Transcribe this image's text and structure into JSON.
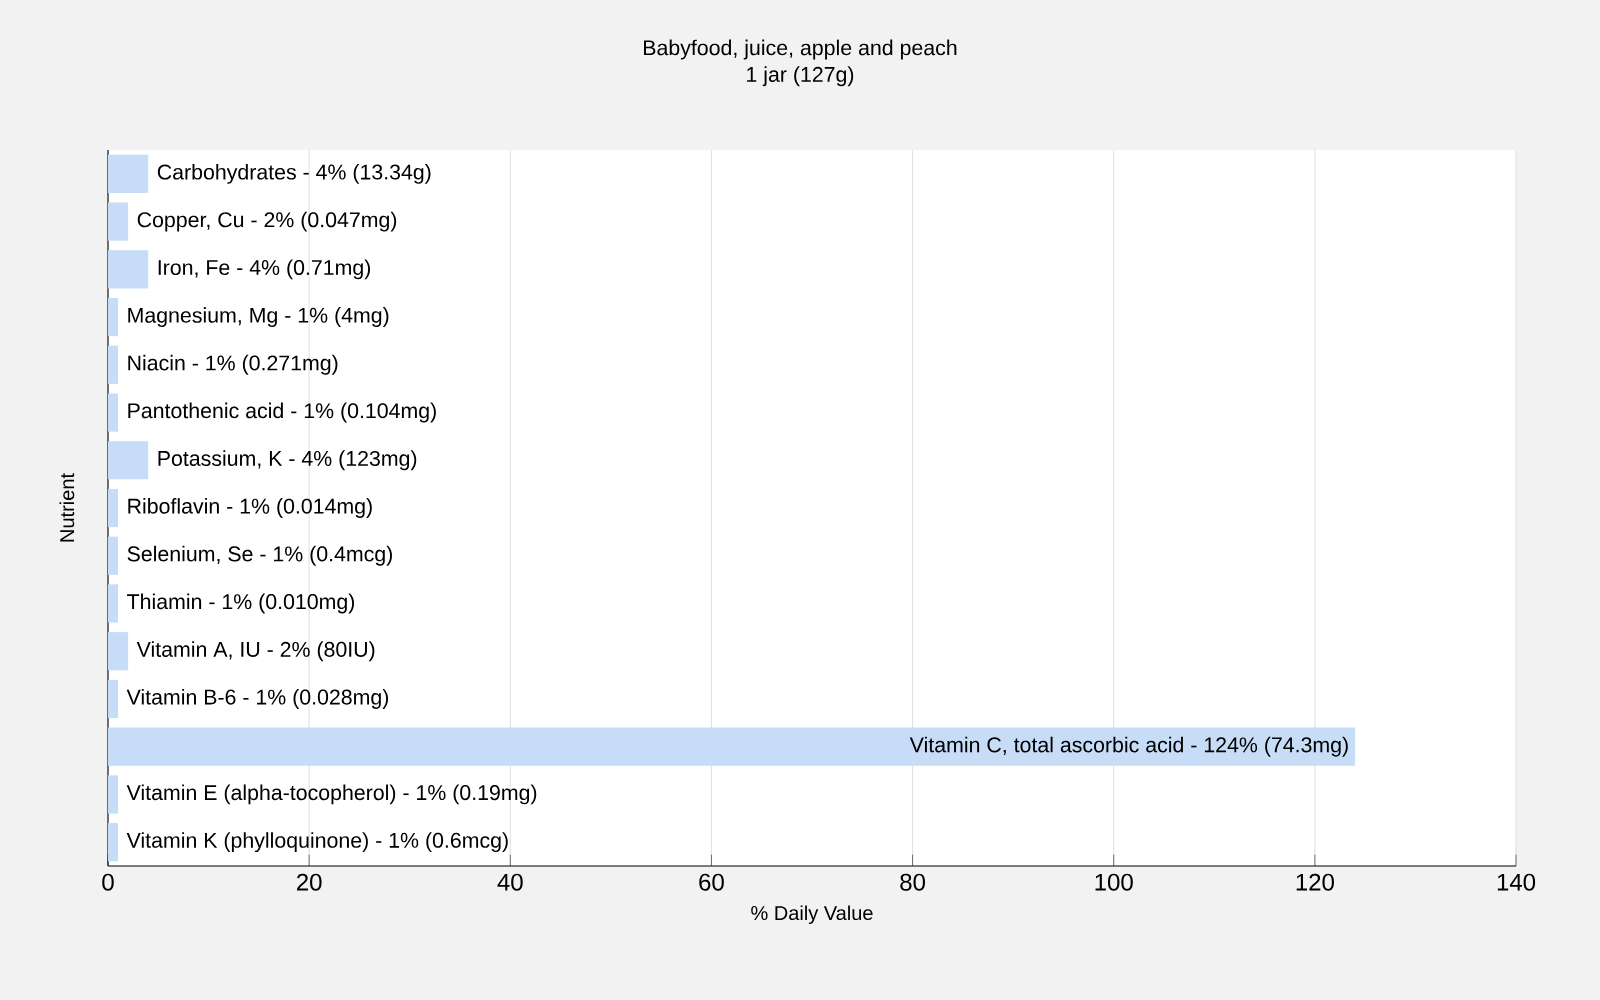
{
  "chart_data": {
    "type": "bar",
    "orientation": "horizontal",
    "title": "Babyfood, juice, apple and peach",
    "subtitle": "1 jar (127g)",
    "xlabel": "% Daily Value",
    "ylabel": "Nutrient",
    "values": [
      4,
      2,
      4,
      1,
      1,
      1,
      4,
      1,
      1,
      1,
      2,
      1,
      124,
      1,
      1
    ],
    "categories": [
      "Carbohydrates - 4% (13.34g)",
      "Copper, Cu - 2% (0.047mg)",
      "Iron, Fe - 4% (0.71mg)",
      "Magnesium, Mg - 1% (4mg)",
      "Niacin - 1% (0.271mg)",
      "Pantothenic acid - 1% (0.104mg)",
      "Potassium, K - 4% (123mg)",
      "Riboflavin - 1% (0.014mg)",
      "Selenium, Se - 1% (0.4mcg)",
      "Thiamin - 1% (0.010mg)",
      "Vitamin A, IU - 2% (80IU)",
      "Vitamin B-6 - 1% (0.028mg)",
      "Vitamin C, total ascorbic acid - 124% (74.3mg)",
      "Vitamin E (alpha-tocopherol) - 1% (0.19mg)",
      "Vitamin K (phylloquinone) - 1% (0.6mcg)"
    ],
    "color": "#c6dcf7",
    "xlim": [
      0,
      140
    ],
    "xticks": [
      0,
      20,
      40,
      60,
      80,
      100,
      120,
      140
    ],
    "grid": "x"
  }
}
